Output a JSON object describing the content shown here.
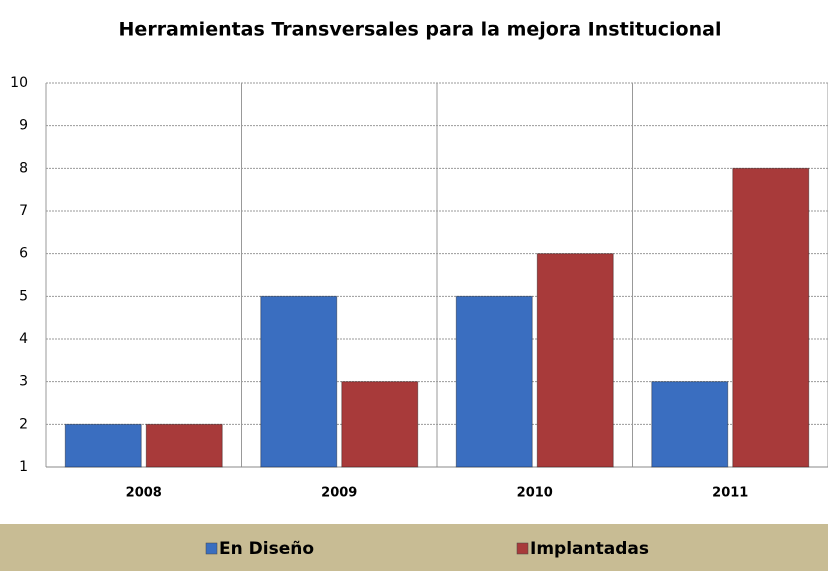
{
  "chart_data": {
    "type": "bar",
    "title": "Herramientas Transversales para la mejora Institucional",
    "categories": [
      "2008",
      "2009",
      "2010",
      "2011"
    ],
    "series": [
      {
        "name": "En Diseño",
        "color": "#3a6ec0",
        "values": [
          2,
          5,
          5,
          3
        ]
      },
      {
        "name": "Implantadas",
        "color": "#a83a3a",
        "values": [
          2,
          3,
          6,
          8
        ]
      }
    ],
    "ylim": [
      1,
      10
    ],
    "yticks": [
      1,
      2,
      3,
      4,
      5,
      6,
      7,
      8,
      9,
      10
    ],
    "grid": true
  }
}
